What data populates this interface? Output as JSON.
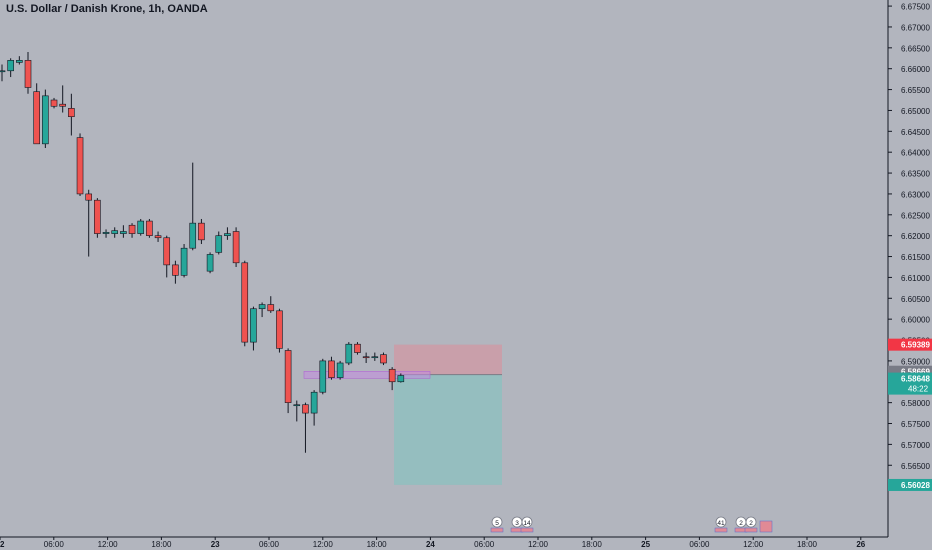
{
  "header": {
    "title": "U.S. Dollar / Danish Krone, 1h, OANDA"
  },
  "chart_data": {
    "type": "candlestick",
    "title": "U.S. Dollar / Danish Krone, 1h, OANDA",
    "ylim": [
      6.555,
      6.6755
    ],
    "y_ticks": [
      "6.67500",
      "6.67000",
      "6.66500",
      "6.66000",
      "6.65500",
      "6.65000",
      "6.64500",
      "6.64000",
      "6.63500",
      "6.63000",
      "6.62500",
      "6.62000",
      "6.61500",
      "6.61000",
      "6.60500",
      "6.60000",
      "6.59500",
      "6.59000",
      "6.58500",
      "6.58000",
      "6.57500",
      "6.57000",
      "6.56500"
    ],
    "x_ticks": [
      "2",
      "06:00",
      "12:00",
      "18:00",
      "23",
      "06:00",
      "12:00",
      "18:00",
      "24",
      "06:00",
      "12:00",
      "18:00",
      "25",
      "06:00",
      "12:00",
      "18:00",
      "26"
    ],
    "candles": [
      {
        "o": 6.6595,
        "h": 6.661,
        "l": 6.657,
        "c": 6.6595
      },
      {
        "o": 6.6595,
        "h": 6.6625,
        "l": 6.658,
        "c": 6.662
      },
      {
        "o": 6.6615,
        "h": 6.663,
        "l": 6.661,
        "c": 6.662
      },
      {
        "o": 6.662,
        "h": 6.664,
        "l": 6.654,
        "c": 6.6555
      },
      {
        "o": 6.6545,
        "h": 6.6565,
        "l": 6.642,
        "c": 6.642
      },
      {
        "o": 6.642,
        "h": 6.655,
        "l": 6.641,
        "c": 6.6535
      },
      {
        "o": 6.6525,
        "h": 6.653,
        "l": 6.6505,
        "c": 6.651
      },
      {
        "o": 6.6515,
        "h": 6.656,
        "l": 6.6495,
        "c": 6.651
      },
      {
        "o": 6.6505,
        "h": 6.654,
        "l": 6.644,
        "c": 6.6485
      },
      {
        "o": 6.6435,
        "h": 6.6445,
        "l": 6.6295,
        "c": 6.63
      },
      {
        "o": 6.63,
        "h": 6.631,
        "l": 6.615,
        "c": 6.6285
      },
      {
        "o": 6.6285,
        "h": 6.629,
        "l": 6.6195,
        "c": 6.6205
      },
      {
        "o": 6.6205,
        "h": 6.6215,
        "l": 6.6195,
        "c": 6.6208
      },
      {
        "o": 6.6205,
        "h": 6.622,
        "l": 6.6195,
        "c": 6.6212
      },
      {
        "o": 6.6205,
        "h": 6.6225,
        "l": 6.6195,
        "c": 6.621
      },
      {
        "o": 6.6225,
        "h": 6.623,
        "l": 6.6195,
        "c": 6.6205
      },
      {
        "o": 6.6205,
        "h": 6.624,
        "l": 6.62,
        "c": 6.6235
      },
      {
        "o": 6.6235,
        "h": 6.624,
        "l": 6.6195,
        "c": 6.62
      },
      {
        "o": 6.62,
        "h": 6.621,
        "l": 6.6185,
        "c": 6.6195
      },
      {
        "o": 6.6195,
        "h": 6.62,
        "l": 6.61,
        "c": 6.613
      },
      {
        "o": 6.613,
        "h": 6.614,
        "l": 6.6085,
        "c": 6.6105
      },
      {
        "o": 6.6105,
        "h": 6.618,
        "l": 6.61,
        "c": 6.617
      },
      {
        "o": 6.617,
        "h": 6.6375,
        "l": 6.6165,
        "c": 6.623
      },
      {
        "o": 6.623,
        "h": 6.624,
        "l": 6.618,
        "c": 6.619
      },
      {
        "o": 6.6115,
        "h": 6.616,
        "l": 6.611,
        "c": 6.6155
      },
      {
        "o": 6.616,
        "h": 6.621,
        "l": 6.6155,
        "c": 6.62
      },
      {
        "o": 6.62,
        "h": 6.622,
        "l": 6.619,
        "c": 6.6205
      },
      {
        "o": 6.621,
        "h": 6.622,
        "l": 6.6125,
        "c": 6.6135
      },
      {
        "o": 6.6135,
        "h": 6.614,
        "l": 6.5935,
        "c": 6.5945
      },
      {
        "o": 6.5945,
        "h": 6.603,
        "l": 6.5925,
        "c": 6.6025
      },
      {
        "o": 6.6025,
        "h": 6.604,
        "l": 6.6005,
        "c": 6.6035
      },
      {
        "o": 6.6035,
        "h": 6.6055,
        "l": 6.6015,
        "c": 6.602
      },
      {
        "o": 6.602,
        "h": 6.6025,
        "l": 6.592,
        "c": 6.593
      },
      {
        "o": 6.5925,
        "h": 6.593,
        "l": 6.5775,
        "c": 6.58
      },
      {
        "o": 6.5795,
        "h": 6.5805,
        "l": 6.5755,
        "c": 6.5795
      },
      {
        "o": 6.5795,
        "h": 6.58,
        "l": 6.568,
        "c": 6.5775
      },
      {
        "o": 6.5775,
        "h": 6.583,
        "l": 6.5745,
        "c": 6.5825
      },
      {
        "o": 6.5825,
        "h": 6.5905,
        "l": 6.582,
        "c": 6.59
      },
      {
        "o": 6.59,
        "h": 6.591,
        "l": 6.5855,
        "c": 6.586
      },
      {
        "o": 6.586,
        "h": 6.59,
        "l": 6.5855,
        "c": 6.5895
      },
      {
        "o": 6.5895,
        "h": 6.5945,
        "l": 6.589,
        "c": 6.594
      },
      {
        "o": 6.594,
        "h": 6.5945,
        "l": 6.5915,
        "c": 6.592
      },
      {
        "o": 6.591,
        "h": 6.592,
        "l": 6.5895,
        "c": 6.5908
      },
      {
        "o": 6.5908,
        "h": 6.592,
        "l": 6.59,
        "c": 6.591
      },
      {
        "o": 6.5915,
        "h": 6.592,
        "l": 6.589,
        "c": 6.5895
      },
      {
        "o": 6.588,
        "h": 6.5885,
        "l": 6.583,
        "c": 6.585
      },
      {
        "o": 6.585,
        "h": 6.587,
        "l": 6.5848,
        "c": 6.5865
      }
    ],
    "overlays": {
      "stop_zone": [
        6.5939,
        6.5867
      ],
      "target_zone": [
        6.5867,
        6.5603
      ],
      "marked_level": [
        6.5875,
        6.5858
      ]
    },
    "price_labels": [
      {
        "text": "6.59389",
        "value": 6.59389,
        "color": "#f23645"
      },
      {
        "text": "6.58669",
        "value": 6.58669,
        "color": "#787b86"
      },
      {
        "text": "6.58648",
        "value": 6.58648,
        "color": "#26a69a",
        "countdown": "48:22"
      },
      {
        "text": "6.56028",
        "value": 6.56028,
        "color": "#26a69a"
      }
    ],
    "event_badges": [
      "5",
      "3",
      "14",
      "41",
      "2",
      "2"
    ]
  },
  "colors": {
    "up": "#26a69a",
    "down": "#ef5350",
    "background": "#b2b5be",
    "axis_text": "#131722"
  }
}
